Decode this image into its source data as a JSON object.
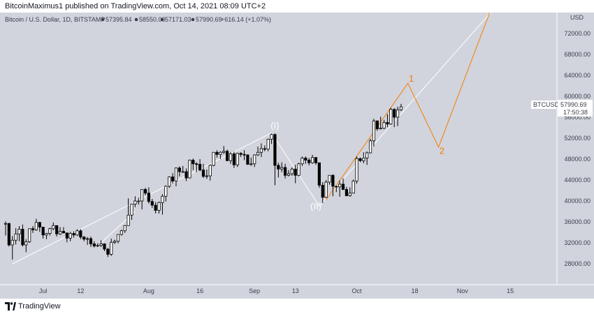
{
  "header": {
    "publish_text": "BitcoinMaximus1 published on TradingView.com, Oct 14, 2021 08:09 UTC+2"
  },
  "info_bar": {
    "symbol": "Bitcoin / U.S. Dollar, 1D, BITSTAMP",
    "open": "57395.84",
    "high": "58550.00",
    "low": "57171.03",
    "close": "57990.69",
    "change": "+616.14 (+1.07%)"
  },
  "price_tag": {
    "symbol": "BTCUSD",
    "price": "57990.69",
    "countdown": "17:50:38"
  },
  "footer": {
    "brand": "TradingView"
  },
  "colors": {
    "plot_bg": "#d1d4dc",
    "up_candle": "#ffffff",
    "down_candle": "#000000",
    "projection": "#f57c00",
    "wave_line": "#ffffff"
  },
  "chart_data": {
    "type": "candlestick",
    "currency": "USD",
    "ylim": [
      24000,
      76000
    ],
    "y_ticks": [
      "28000.00",
      "32000.00",
      "36000.00",
      "40000.00",
      "44000.00",
      "48000.00",
      "52000.00",
      "56000.00",
      "60000.00",
      "64000.00",
      "68000.00",
      "72000.00"
    ],
    "x_ticks": [
      "Jul",
      "12",
      "Aug",
      "16",
      "Sep",
      "13",
      "Oct",
      "18",
      "Nov",
      "15"
    ],
    "x_tick_dates": [
      "2021-07-01",
      "2021-07-12",
      "2021-08-01",
      "2021-08-16",
      "2021-09-01",
      "2021-09-13",
      "2021-10-01",
      "2021-10-18",
      "2021-11-01",
      "2021-11-15"
    ],
    "xlim": [
      "2021-06-20",
      "2021-11-24"
    ],
    "ohlc": [
      {
        "d": "2021-06-20",
        "o": 35600,
        "h": 36100,
        "l": 33400,
        "c": 35700
      },
      {
        "d": "2021-06-21",
        "o": 35700,
        "h": 35800,
        "l": 31300,
        "c": 31600
      },
      {
        "d": "2021-06-22",
        "o": 31600,
        "h": 33300,
        "l": 28800,
        "c": 32500
      },
      {
        "d": "2021-06-23",
        "o": 32500,
        "h": 34800,
        "l": 31700,
        "c": 33700
      },
      {
        "d": "2021-06-24",
        "o": 33700,
        "h": 35200,
        "l": 32300,
        "c": 34600
      },
      {
        "d": "2021-06-25",
        "o": 34600,
        "h": 35500,
        "l": 31300,
        "c": 31600
      },
      {
        "d": "2021-06-26",
        "o": 31600,
        "h": 32700,
        "l": 30200,
        "c": 32200
      },
      {
        "d": "2021-06-27",
        "o": 32200,
        "h": 34700,
        "l": 32000,
        "c": 34700
      },
      {
        "d": "2021-06-28",
        "o": 34700,
        "h": 35200,
        "l": 33900,
        "c": 34500
      },
      {
        "d": "2021-06-29",
        "o": 34500,
        "h": 36600,
        "l": 34300,
        "c": 35900
      },
      {
        "d": "2021-06-30",
        "o": 35900,
        "h": 36000,
        "l": 34100,
        "c": 35000
      },
      {
        "d": "2021-07-01",
        "o": 35000,
        "h": 35000,
        "l": 32800,
        "c": 33500
      },
      {
        "d": "2021-07-02",
        "o": 33500,
        "h": 33900,
        "l": 32700,
        "c": 33800
      },
      {
        "d": "2021-07-03",
        "o": 33800,
        "h": 34900,
        "l": 33400,
        "c": 34700
      },
      {
        "d": "2021-07-04",
        "o": 34700,
        "h": 35900,
        "l": 34400,
        "c": 35300
      },
      {
        "d": "2021-07-05",
        "o": 35300,
        "h": 35300,
        "l": 33200,
        "c": 33700
      },
      {
        "d": "2021-07-06",
        "o": 33700,
        "h": 35000,
        "l": 33500,
        "c": 34200
      },
      {
        "d": "2021-07-07",
        "o": 34200,
        "h": 35000,
        "l": 33800,
        "c": 33900
      },
      {
        "d": "2021-07-08",
        "o": 33900,
        "h": 33900,
        "l": 32100,
        "c": 32900
      },
      {
        "d": "2021-07-09",
        "o": 32900,
        "h": 34100,
        "l": 32300,
        "c": 33800
      },
      {
        "d": "2021-07-10",
        "o": 33800,
        "h": 34200,
        "l": 33000,
        "c": 33500
      },
      {
        "d": "2021-07-11",
        "o": 33500,
        "h": 34600,
        "l": 33300,
        "c": 34300
      },
      {
        "d": "2021-07-12",
        "o": 34300,
        "h": 34600,
        "l": 32700,
        "c": 33100
      },
      {
        "d": "2021-07-13",
        "o": 33100,
        "h": 33300,
        "l": 32300,
        "c": 32700
      },
      {
        "d": "2021-07-14",
        "o": 32700,
        "h": 33100,
        "l": 31600,
        "c": 32800
      },
      {
        "d": "2021-07-15",
        "o": 32800,
        "h": 33200,
        "l": 31200,
        "c": 31800
      },
      {
        "d": "2021-07-16",
        "o": 31800,
        "h": 32300,
        "l": 31100,
        "c": 31400
      },
      {
        "d": "2021-07-17",
        "o": 31400,
        "h": 31900,
        "l": 31200,
        "c": 31500
      },
      {
        "d": "2021-07-18",
        "o": 31500,
        "h": 32500,
        "l": 31200,
        "c": 31800
      },
      {
        "d": "2021-07-19",
        "o": 31800,
        "h": 31900,
        "l": 30400,
        "c": 30800
      },
      {
        "d": "2021-07-20",
        "o": 30800,
        "h": 31000,
        "l": 29300,
        "c": 29800
      },
      {
        "d": "2021-07-21",
        "o": 29800,
        "h": 32800,
        "l": 29500,
        "c": 32100
      },
      {
        "d": "2021-07-22",
        "o": 32100,
        "h": 32600,
        "l": 31800,
        "c": 32300
      },
      {
        "d": "2021-07-23",
        "o": 32300,
        "h": 33600,
        "l": 31900,
        "c": 33600
      },
      {
        "d": "2021-07-24",
        "o": 33600,
        "h": 34500,
        "l": 33400,
        "c": 34300
      },
      {
        "d": "2021-07-25",
        "o": 34300,
        "h": 35400,
        "l": 33900,
        "c": 35300
      },
      {
        "d": "2021-07-26",
        "o": 35300,
        "h": 40500,
        "l": 35300,
        "c": 37300
      },
      {
        "d": "2021-07-27",
        "o": 37300,
        "h": 39500,
        "l": 36400,
        "c": 39400
      },
      {
        "d": "2021-07-28",
        "o": 39400,
        "h": 40900,
        "l": 38800,
        "c": 40000
      },
      {
        "d": "2021-07-29",
        "o": 40000,
        "h": 40600,
        "l": 39300,
        "c": 40000
      },
      {
        "d": "2021-07-30",
        "o": 40000,
        "h": 42200,
        "l": 38400,
        "c": 42200
      },
      {
        "d": "2021-07-31",
        "o": 42200,
        "h": 42500,
        "l": 41100,
        "c": 41500
      },
      {
        "d": "2021-08-01",
        "o": 41500,
        "h": 42600,
        "l": 39500,
        "c": 39900
      },
      {
        "d": "2021-08-02",
        "o": 39900,
        "h": 40400,
        "l": 38700,
        "c": 39200
      },
      {
        "d": "2021-08-03",
        "o": 39200,
        "h": 39800,
        "l": 37600,
        "c": 38200
      },
      {
        "d": "2021-08-04",
        "o": 38200,
        "h": 39900,
        "l": 37600,
        "c": 39700
      },
      {
        "d": "2021-08-05",
        "o": 39700,
        "h": 41300,
        "l": 37400,
        "c": 40900
      },
      {
        "d": "2021-08-06",
        "o": 40900,
        "h": 43000,
        "l": 39900,
        "c": 42800
      },
      {
        "d": "2021-08-07",
        "o": 42800,
        "h": 44700,
        "l": 42500,
        "c": 44600
      },
      {
        "d": "2021-08-08",
        "o": 44600,
        "h": 45300,
        "l": 43300,
        "c": 43800
      },
      {
        "d": "2021-08-09",
        "o": 43800,
        "h": 46400,
        "l": 42800,
        "c": 46300
      },
      {
        "d": "2021-08-10",
        "o": 46300,
        "h": 46600,
        "l": 44700,
        "c": 45600
      },
      {
        "d": "2021-08-11",
        "o": 45600,
        "h": 46700,
        "l": 45400,
        "c": 45600
      },
      {
        "d": "2021-08-12",
        "o": 45600,
        "h": 46200,
        "l": 43800,
        "c": 44400
      },
      {
        "d": "2021-08-13",
        "o": 44400,
        "h": 47900,
        "l": 44300,
        "c": 47800
      },
      {
        "d": "2021-08-14",
        "o": 47800,
        "h": 48100,
        "l": 45900,
        "c": 47100
      },
      {
        "d": "2021-08-15",
        "o": 47100,
        "h": 47400,
        "l": 45500,
        "c": 47000
      },
      {
        "d": "2021-08-16",
        "o": 47000,
        "h": 48000,
        "l": 45700,
        "c": 45900
      },
      {
        "d": "2021-08-17",
        "o": 45900,
        "h": 47100,
        "l": 44400,
        "c": 44700
      },
      {
        "d": "2021-08-18",
        "o": 44700,
        "h": 46000,
        "l": 44200,
        "c": 44800
      },
      {
        "d": "2021-08-19",
        "o": 44800,
        "h": 47000,
        "l": 43900,
        "c": 46800
      },
      {
        "d": "2021-08-20",
        "o": 46800,
        "h": 49300,
        "l": 46600,
        "c": 49300
      },
      {
        "d": "2021-08-21",
        "o": 49300,
        "h": 49700,
        "l": 48300,
        "c": 48900
      },
      {
        "d": "2021-08-22",
        "o": 48900,
        "h": 49500,
        "l": 48000,
        "c": 49300
      },
      {
        "d": "2021-08-23",
        "o": 49300,
        "h": 50500,
        "l": 49000,
        "c": 49500
      },
      {
        "d": "2021-08-24",
        "o": 49500,
        "h": 49800,
        "l": 47600,
        "c": 47700
      },
      {
        "d": "2021-08-25",
        "o": 47700,
        "h": 49300,
        "l": 47100,
        "c": 49000
      },
      {
        "d": "2021-08-26",
        "o": 49000,
        "h": 49400,
        "l": 46300,
        "c": 46900
      },
      {
        "d": "2021-08-27",
        "o": 46900,
        "h": 49200,
        "l": 46500,
        "c": 49100
      },
      {
        "d": "2021-08-28",
        "o": 49100,
        "h": 49300,
        "l": 48400,
        "c": 48900
      },
      {
        "d": "2021-08-29",
        "o": 48900,
        "h": 49700,
        "l": 47800,
        "c": 48800
      },
      {
        "d": "2021-08-30",
        "o": 48800,
        "h": 48900,
        "l": 46900,
        "c": 47000
      },
      {
        "d": "2021-08-31",
        "o": 47000,
        "h": 48300,
        "l": 46700,
        "c": 47100
      },
      {
        "d": "2021-09-01",
        "o": 47100,
        "h": 48900,
        "l": 46500,
        "c": 48800
      },
      {
        "d": "2021-09-02",
        "o": 48800,
        "h": 50400,
        "l": 48600,
        "c": 49300
      },
      {
        "d": "2021-09-03",
        "o": 49300,
        "h": 51000,
        "l": 48400,
        "c": 50000
      },
      {
        "d": "2021-09-04",
        "o": 50000,
        "h": 50600,
        "l": 49500,
        "c": 49900
      },
      {
        "d": "2021-09-05",
        "o": 49900,
        "h": 51900,
        "l": 49500,
        "c": 51800
      },
      {
        "d": "2021-09-06",
        "o": 51800,
        "h": 52900,
        "l": 50900,
        "c": 52700
      },
      {
        "d": "2021-09-07",
        "o": 52700,
        "h": 52900,
        "l": 43000,
        "c": 46800
      },
      {
        "d": "2021-09-08",
        "o": 46800,
        "h": 47300,
        "l": 44500,
        "c": 46100
      },
      {
        "d": "2021-09-09",
        "o": 46100,
        "h": 47400,
        "l": 45500,
        "c": 46400
      },
      {
        "d": "2021-09-10",
        "o": 46400,
        "h": 47100,
        "l": 44300,
        "c": 44900
      },
      {
        "d": "2021-09-11",
        "o": 44900,
        "h": 45900,
        "l": 44700,
        "c": 45200
      },
      {
        "d": "2021-09-12",
        "o": 45200,
        "h": 46400,
        "l": 44800,
        "c": 46100
      },
      {
        "d": "2021-09-13",
        "o": 46100,
        "h": 46900,
        "l": 43400,
        "c": 44900
      },
      {
        "d": "2021-09-14",
        "o": 44900,
        "h": 47300,
        "l": 44700,
        "c": 47100
      },
      {
        "d": "2021-09-15",
        "o": 47100,
        "h": 48500,
        "l": 46700,
        "c": 48200
      },
      {
        "d": "2021-09-16",
        "o": 48200,
        "h": 48500,
        "l": 47100,
        "c": 47800
      },
      {
        "d": "2021-09-17",
        "o": 47800,
        "h": 48200,
        "l": 46800,
        "c": 47300
      },
      {
        "d": "2021-09-18",
        "o": 47300,
        "h": 48800,
        "l": 47100,
        "c": 48300
      },
      {
        "d": "2021-09-19",
        "o": 48300,
        "h": 48400,
        "l": 46900,
        "c": 47300
      },
      {
        "d": "2021-09-20",
        "o": 47300,
        "h": 47300,
        "l": 42500,
        "c": 43000
      },
      {
        "d": "2021-09-21",
        "o": 43000,
        "h": 43600,
        "l": 39600,
        "c": 40700
      },
      {
        "d": "2021-09-22",
        "o": 40700,
        "h": 44000,
        "l": 40500,
        "c": 43600
      },
      {
        "d": "2021-09-23",
        "o": 43600,
        "h": 44900,
        "l": 43100,
        "c": 44900
      },
      {
        "d": "2021-09-24",
        "o": 44900,
        "h": 45100,
        "l": 40900,
        "c": 42800
      },
      {
        "d": "2021-09-25",
        "o": 42800,
        "h": 42900,
        "l": 41700,
        "c": 42700
      },
      {
        "d": "2021-09-26",
        "o": 42700,
        "h": 43900,
        "l": 40800,
        "c": 43200
      },
      {
        "d": "2021-09-27",
        "o": 43200,
        "h": 44300,
        "l": 42100,
        "c": 42200
      },
      {
        "d": "2021-09-28",
        "o": 42200,
        "h": 42700,
        "l": 40900,
        "c": 41000
      },
      {
        "d": "2021-09-29",
        "o": 41000,
        "h": 42600,
        "l": 40800,
        "c": 41500
      },
      {
        "d": "2021-09-30",
        "o": 41500,
        "h": 44100,
        "l": 41400,
        "c": 43800
      },
      {
        "d": "2021-10-01",
        "o": 43800,
        "h": 48500,
        "l": 43300,
        "c": 48100
      },
      {
        "d": "2021-10-02",
        "o": 48100,
        "h": 48300,
        "l": 47400,
        "c": 47700
      },
      {
        "d": "2021-10-03",
        "o": 47700,
        "h": 49300,
        "l": 47200,
        "c": 48200
      },
      {
        "d": "2021-10-04",
        "o": 48200,
        "h": 49500,
        "l": 46900,
        "c": 49200
      },
      {
        "d": "2021-10-05",
        "o": 49200,
        "h": 51900,
        "l": 49100,
        "c": 51500
      },
      {
        "d": "2021-10-06",
        "o": 51500,
        "h": 55700,
        "l": 50400,
        "c": 55300
      },
      {
        "d": "2021-10-07",
        "o": 55300,
        "h": 55400,
        "l": 53400,
        "c": 53800
      },
      {
        "d": "2021-10-08",
        "o": 53800,
        "h": 56100,
        "l": 53700,
        "c": 53900
      },
      {
        "d": "2021-10-09",
        "o": 53900,
        "h": 55500,
        "l": 53700,
        "c": 55000
      },
      {
        "d": "2021-10-10",
        "o": 55000,
        "h": 56600,
        "l": 54100,
        "c": 54700
      },
      {
        "d": "2021-10-11",
        "o": 54700,
        "h": 57800,
        "l": 54500,
        "c": 57500
      },
      {
        "d": "2021-10-12",
        "o": 57500,
        "h": 57700,
        "l": 54100,
        "c": 56000
      },
      {
        "d": "2021-10-13",
        "o": 56000,
        "h": 58000,
        "l": 54300,
        "c": 57400
      },
      {
        "d": "2021-10-14",
        "o": 57396,
        "h": 58550,
        "l": 57171,
        "c": 57991
      }
    ],
    "annotations": [
      {
        "text": "(I)",
        "color": "#ffffff",
        "d": "2021-09-07",
        "y": 53800
      },
      {
        "text": "(II)",
        "color": "#ffffff",
        "d": "2021-09-19",
        "y": 38400
      },
      {
        "text": "1",
        "color": "#f57c00",
        "d": "2021-10-17",
        "y": 62800
      },
      {
        "text": "2",
        "color": "#f57c00",
        "d": "2021-10-26",
        "y": 49000
      }
    ],
    "wave_lines": [
      {
        "color": "#ffffff",
        "points": [
          [
            "2021-06-22",
            28000
          ],
          [
            "2021-09-06",
            53000
          ],
          [
            "2021-09-20",
            39000
          ],
          [
            "2021-11-12",
            78000
          ]
        ]
      },
      {
        "color": "#ffffff",
        "points": [
          [
            "2021-07-18",
            32000
          ],
          [
            "2021-07-28",
            38000
          ]
        ]
      },
      {
        "color": "#f57c00",
        "points": [
          [
            "2021-09-22",
            40200
          ],
          [
            "2021-10-16",
            62500
          ],
          [
            "2021-10-25",
            50300
          ],
          [
            "2021-11-09",
            76000
          ]
        ]
      }
    ]
  }
}
